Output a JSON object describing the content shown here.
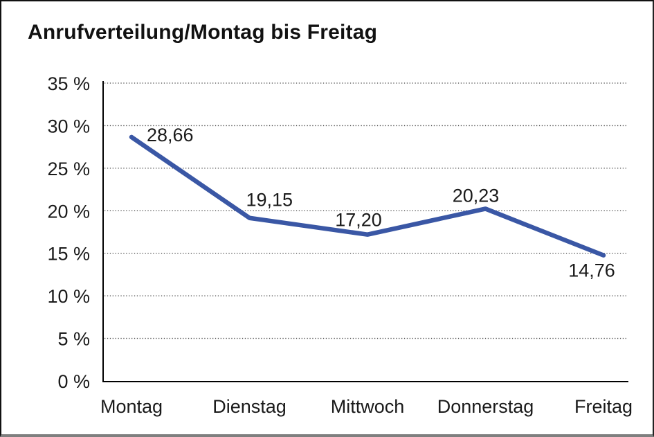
{
  "title": "Anrufverteilung/Montag bis Freitag",
  "colors": {
    "line": "#3a57a5",
    "axis": "#000000",
    "grid": "#444444",
    "text": "#1a1a1a",
    "background": "#ffffff",
    "frame_border": "#111111"
  },
  "chart_data": {
    "type": "line",
    "title": "Anrufverteilung/Montag bis Freitag",
    "categories": [
      "Montag",
      "Dienstag",
      "Mittwoch",
      "Donnerstag",
      "Freitag"
    ],
    "values": [
      28.66,
      19.15,
      17.2,
      20.23,
      14.76
    ],
    "value_labels": [
      "28,66",
      "19,15",
      "17,20",
      "20,23",
      "14,76"
    ],
    "xlabel": "",
    "ylabel": "",
    "ylim": [
      0,
      35
    ],
    "ytick_step": 5,
    "ytick_labels": [
      "0 %",
      "5 %",
      "10 %",
      "15 %",
      "20 %",
      "25 %",
      "30 %",
      "35 %"
    ],
    "grid": "horizontal-dotted",
    "legend_position": "none",
    "line_color": "#3a57a5",
    "markers": "none",
    "decimal_separator": ","
  }
}
